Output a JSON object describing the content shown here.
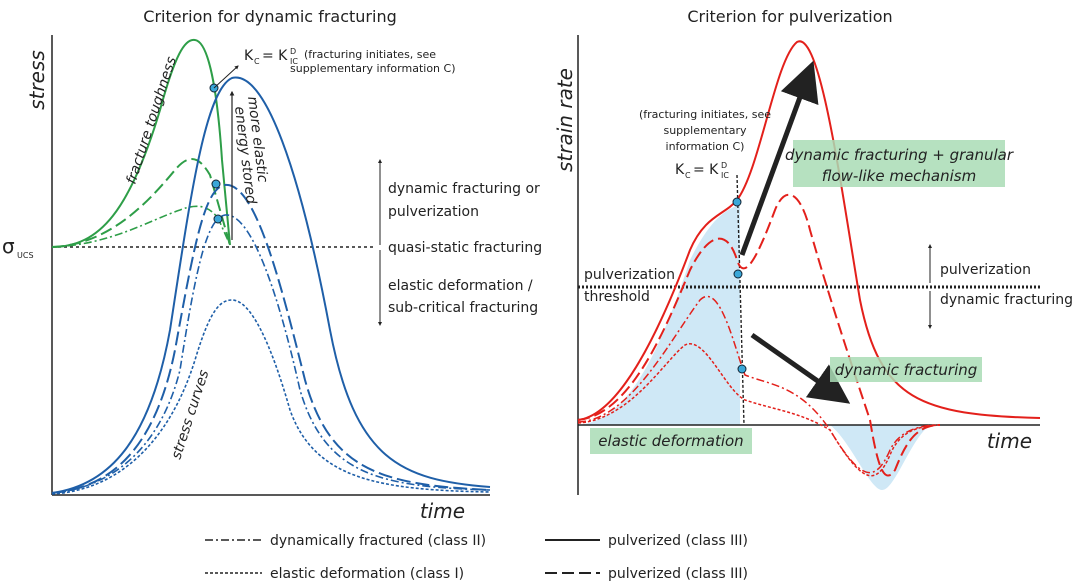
{
  "left_panel": {
    "title": "Criterion for dynamic fracturing",
    "y_label": "stress",
    "x_label": "time",
    "sigma": "σ",
    "sigma_sub": "UCS",
    "kc": {
      "k": "K",
      "c": "C",
      "eq": "= K",
      "d": "D",
      "ic": "IC"
    },
    "kc_note": [
      "(fracturing initiates, see",
      "supplementary information C)"
    ],
    "fracture_toughness": "fracture toughness",
    "energy_note": [
      "more elastic",
      "energy stored"
    ],
    "stress_curves": "stress curves",
    "zones": {
      "upper": [
        "dynamic fracturing or",
        "pulverization"
      ],
      "middle": "quasi-static fracturing",
      "lower": [
        "elastic deformation /",
        "sub-critical fracturing"
      ]
    }
  },
  "right_panel": {
    "title": "Criterion for pulverization",
    "y_label": "strain rate",
    "x_label": "time",
    "kc_note": [
      "(fracturing initiates, see",
      "supplementary",
      "information C)"
    ],
    "kc": {
      "k": "K",
      "c": "C",
      "eq": "= K",
      "d": "D",
      "ic": "IC"
    },
    "threshold": [
      "pulverization",
      "threshold"
    ],
    "zones": {
      "upper": "pulverization",
      "lower": "dynamic fracturing"
    },
    "mechanism": [
      "dynamic fracturing + granular",
      "flow-like mechanism"
    ],
    "fracturing_label": "dynamic fracturing",
    "elastic_label": "elastic deformation"
  },
  "legend": [
    "dynamically fractured (class II)",
    "elastic deformation (class I)",
    "pulverized (class III)",
    "pulverized (class III)"
  ]
}
